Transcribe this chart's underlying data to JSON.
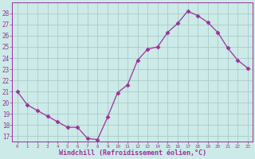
{
  "x": [
    0,
    1,
    2,
    3,
    4,
    5,
    6,
    7,
    8,
    9,
    10,
    11,
    12,
    13,
    14,
    15,
    16,
    17,
    18,
    19,
    20,
    21,
    22,
    23
  ],
  "y": [
    21.0,
    19.8,
    19.3,
    18.8,
    18.3,
    17.8,
    17.8,
    16.8,
    16.7,
    18.7,
    20.9,
    21.6,
    23.8,
    24.8,
    25.0,
    26.3,
    27.1,
    28.2,
    27.8,
    27.2,
    26.3,
    24.9,
    23.8,
    23.1
  ],
  "line_color": "#993399",
  "marker": "D",
  "marker_size": 2.5,
  "bg_color": "#cceae7",
  "grid_color": "#aacccc",
  "xlabel": "Windchill (Refroidissement éolien,°C)",
  "xlabel_color": "#993399",
  "tick_color": "#993399",
  "ylim": [
    16.5,
    29
  ],
  "xlim": [
    -0.5,
    23.5
  ],
  "yticks": [
    17,
    18,
    19,
    20,
    21,
    22,
    23,
    24,
    25,
    26,
    27,
    28
  ],
  "xticks": [
    0,
    1,
    2,
    3,
    4,
    5,
    6,
    7,
    8,
    9,
    10,
    11,
    12,
    13,
    14,
    15,
    16,
    17,
    18,
    19,
    20,
    21,
    22,
    23
  ],
  "xtick_labels": [
    "0",
    "1",
    "2",
    "3",
    "4",
    "5",
    "6",
    "7",
    "8",
    "9",
    "10",
    "11",
    "12",
    "13",
    "14",
    "15",
    "16",
    "17",
    "18",
    "19",
    "20",
    "21",
    "22",
    "23"
  ]
}
